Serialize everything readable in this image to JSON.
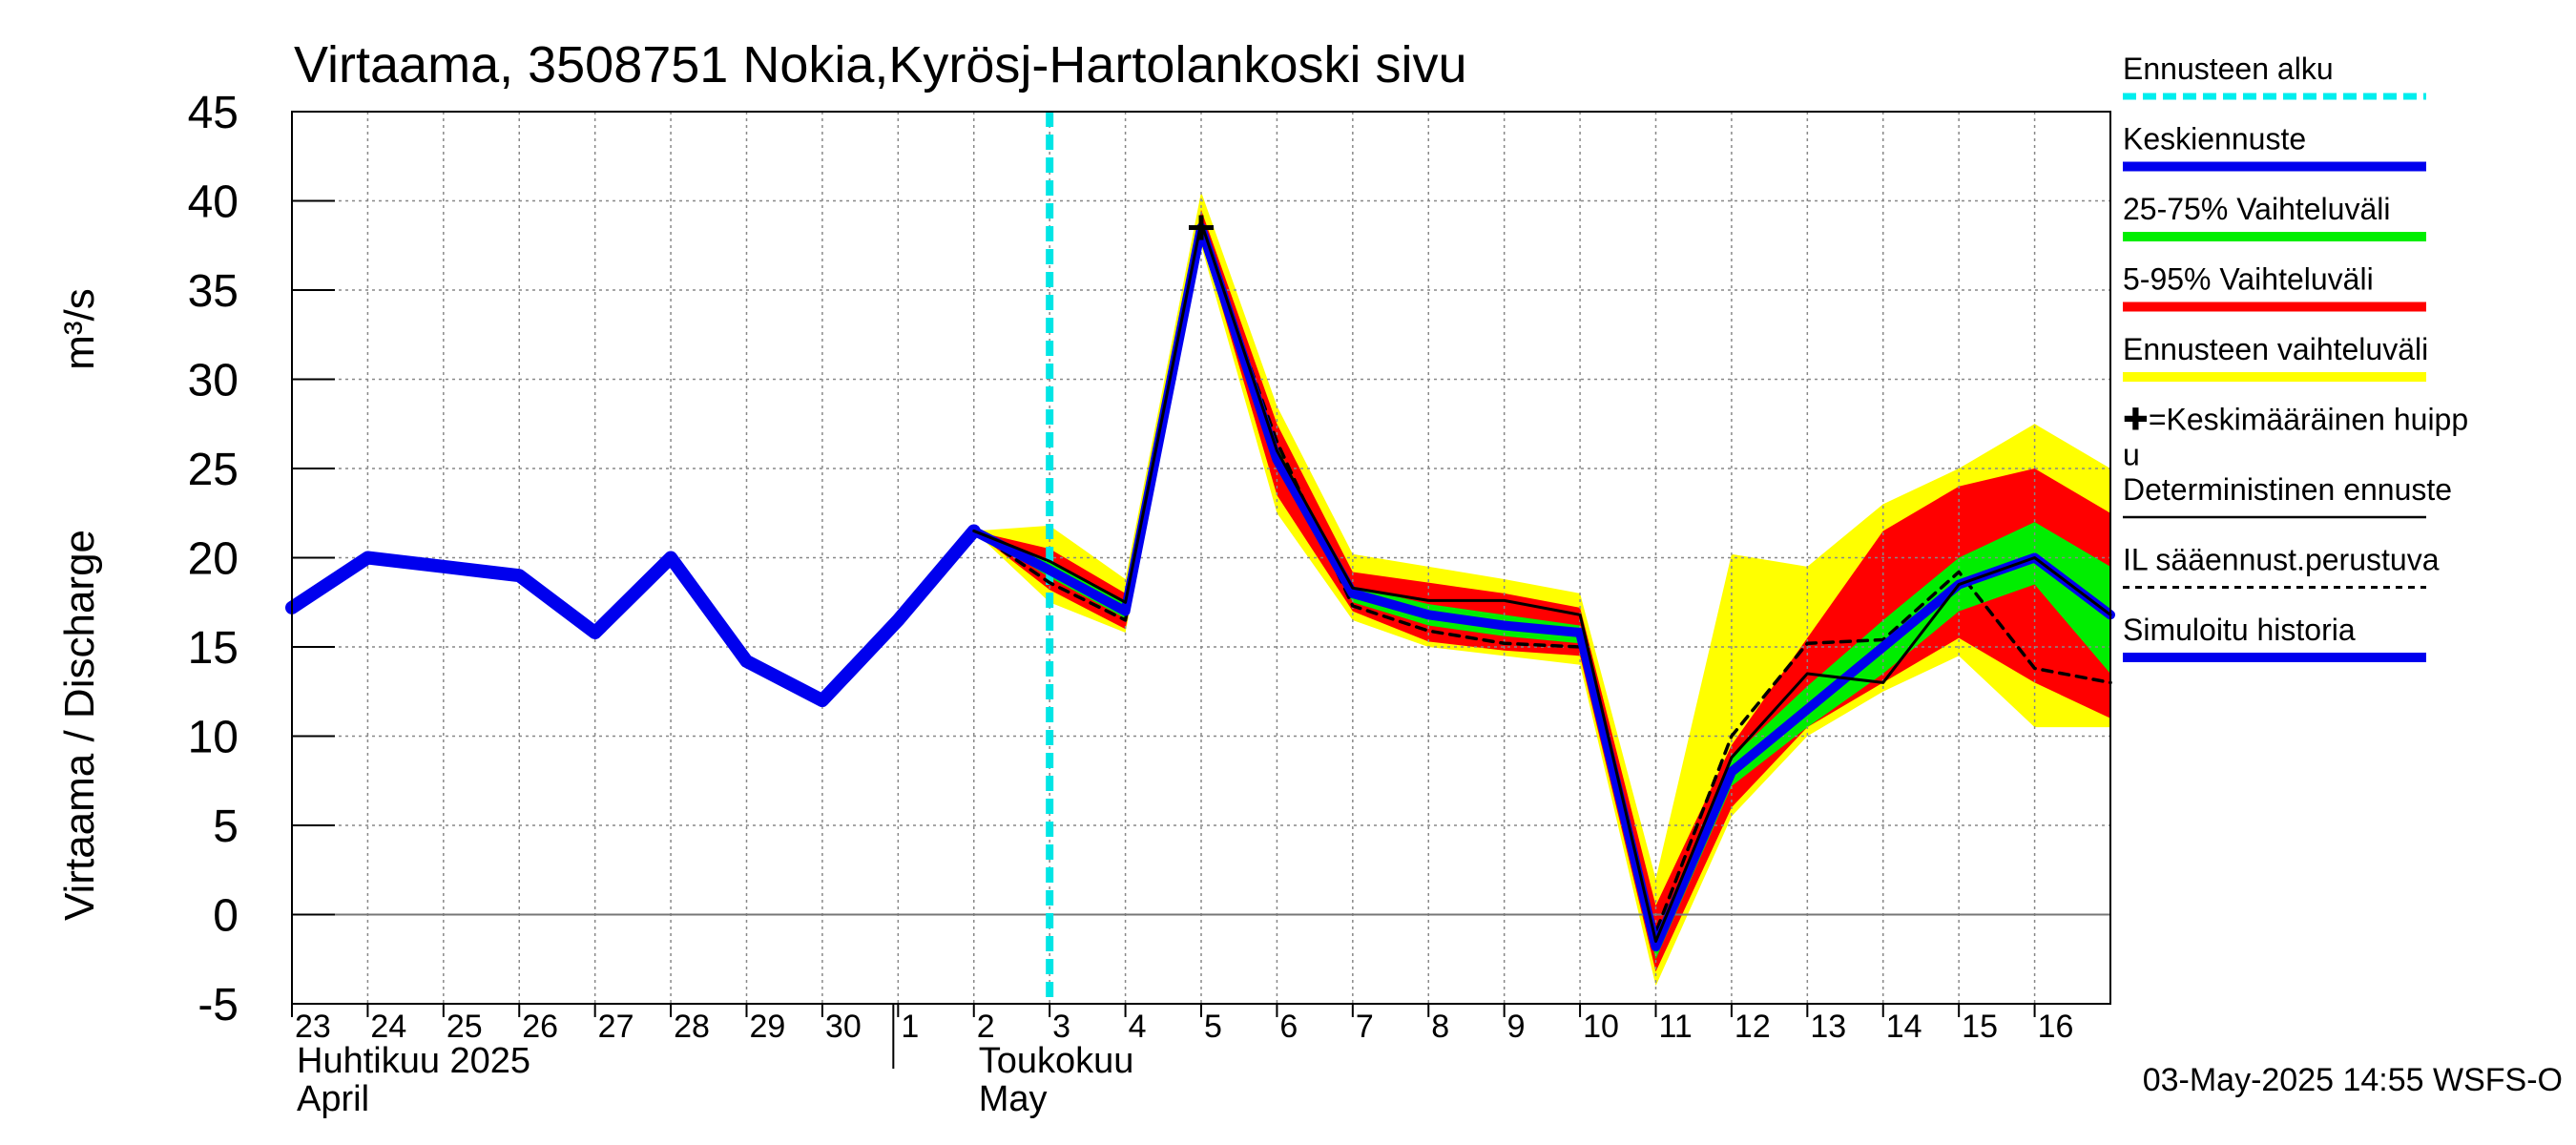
{
  "chart_data": {
    "type": "line",
    "title": "Virtaama, 3508751 Nokia,Kyrösj-Hartolankoski sivu",
    "ylabel": "Virtaama / Discharge",
    "yunit": "m³/s",
    "ylim": [
      -5,
      45
    ],
    "yticks": [
      -5,
      0,
      5,
      10,
      15,
      20,
      25,
      30,
      35,
      40,
      45
    ],
    "x_day_range": [
      0,
      24
    ],
    "x_ticks": [
      {
        "pos": 0,
        "label": "23"
      },
      {
        "pos": 1,
        "label": "24"
      },
      {
        "pos": 2,
        "label": "25"
      },
      {
        "pos": 3,
        "label": "26"
      },
      {
        "pos": 4,
        "label": "27"
      },
      {
        "pos": 5,
        "label": "28"
      },
      {
        "pos": 6,
        "label": "29"
      },
      {
        "pos": 7,
        "label": "30"
      },
      {
        "pos": 8,
        "label": "1"
      },
      {
        "pos": 9,
        "label": "2"
      },
      {
        "pos": 10,
        "label": "3"
      },
      {
        "pos": 11,
        "label": "4"
      },
      {
        "pos": 12,
        "label": "5"
      },
      {
        "pos": 13,
        "label": "6"
      },
      {
        "pos": 14,
        "label": "7"
      },
      {
        "pos": 15,
        "label": "8"
      },
      {
        "pos": 16,
        "label": "9"
      },
      {
        "pos": 17,
        "label": "10"
      },
      {
        "pos": 18,
        "label": "11"
      },
      {
        "pos": 19,
        "label": "12"
      },
      {
        "pos": 20,
        "label": "13"
      },
      {
        "pos": 21,
        "label": "14"
      },
      {
        "pos": 22,
        "label": "15"
      },
      {
        "pos": 23,
        "label": "16"
      }
    ],
    "month_labels": [
      {
        "pos": 0,
        "line1": "Huhtikuu  2025",
        "line2": "April"
      },
      {
        "pos": 9,
        "line1": "Toukokuu",
        "line2": "May"
      }
    ],
    "month_divider_pos": 8,
    "forecast_start_pos": 10,
    "series": [
      {
        "name": "Simuloitu historia",
        "color": "#0000ee",
        "x": [
          0,
          1,
          2,
          3,
          4,
          5,
          6,
          7,
          8,
          9
        ],
        "y": [
          17.2,
          20.0,
          19.5,
          19.0,
          15.8,
          20.0,
          14.2,
          12.0,
          16.5,
          21.5
        ]
      },
      {
        "name": "Keskiennuste",
        "color": "#0000ee",
        "x": [
          9,
          10,
          11,
          12,
          13,
          14,
          15,
          16,
          17,
          18,
          19,
          20,
          21,
          22,
          23,
          24
        ],
        "y": [
          21.5,
          19.3,
          17.0,
          38.5,
          25.5,
          18.0,
          16.8,
          16.2,
          15.8,
          -1.8,
          8.0,
          11.5,
          15.0,
          18.5,
          20.0,
          16.8
        ]
      },
      {
        "name": "Deterministinen ennuste",
        "color": "#000000",
        "x": [
          9,
          10,
          11,
          12,
          13,
          14,
          15,
          16,
          17,
          18,
          19,
          20,
          21,
          22,
          23,
          24
        ],
        "y": [
          21.5,
          19.8,
          17.5,
          38.8,
          26.0,
          18.3,
          17.6,
          17.6,
          16.8,
          -1.5,
          8.8,
          13.5,
          13.0,
          18.5,
          20.0,
          16.8
        ]
      },
      {
        "name": "IL sääennust.perustuva",
        "color": "#000000",
        "x": [
          9,
          10,
          11,
          12,
          13,
          14,
          15,
          16,
          17,
          18,
          19,
          20,
          21,
          22,
          23,
          24
        ],
        "y": [
          21.5,
          18.6,
          16.5,
          38.4,
          26.5,
          17.3,
          15.9,
          15.2,
          15.0,
          -1.0,
          10.0,
          15.2,
          15.4,
          19.2,
          13.8,
          13.0
        ]
      }
    ],
    "bands": [
      {
        "name": "Ennusteen vaihteluväli",
        "color": "#ffff00",
        "x": [
          9,
          10,
          11,
          12,
          13,
          14,
          15,
          16,
          17,
          18,
          19,
          20,
          21,
          22,
          23,
          24
        ],
        "upper": [
          21.5,
          21.8,
          18.8,
          40.5,
          28.5,
          20.2,
          19.5,
          18.8,
          18.0,
          2.0,
          20.2,
          19.5,
          23.0,
          25.0,
          27.5,
          25.0
        ],
        "lower": [
          21.5,
          17.5,
          15.8,
          37.5,
          22.5,
          16.5,
          15.0,
          14.5,
          14.0,
          -4.0,
          5.5,
          10.0,
          12.5,
          14.5,
          10.5,
          10.5
        ]
      },
      {
        "name": "5-95% Vaihteluväli",
        "color": "#ff0000",
        "x": [
          9,
          10,
          11,
          12,
          13,
          14,
          15,
          16,
          17,
          18,
          19,
          20,
          21,
          22,
          23,
          24
        ],
        "upper": [
          21.5,
          20.5,
          18.0,
          39.5,
          27.5,
          19.2,
          18.6,
          18.0,
          17.2,
          0.5,
          9.5,
          15.5,
          21.5,
          24.0,
          25.0,
          22.5
        ],
        "lower": [
          21.5,
          18.2,
          16.0,
          38.0,
          23.5,
          17.0,
          15.3,
          14.8,
          14.5,
          -3.2,
          6.0,
          10.5,
          13.0,
          15.5,
          13.0,
          11.0
        ]
      },
      {
        "name": "25-75% Vaihteluväli",
        "color": "#00ee00",
        "x": [
          9,
          10,
          11,
          12,
          13,
          14,
          15,
          16,
          17,
          18,
          19,
          20,
          21,
          22,
          23,
          24
        ],
        "upper": [
          21.5,
          19.8,
          17.5,
          38.8,
          26.2,
          18.4,
          17.4,
          16.8,
          16.2,
          -1.2,
          8.8,
          12.8,
          16.5,
          20.0,
          22.0,
          19.5
        ],
        "lower": [
          21.5,
          18.9,
          16.6,
          38.3,
          25.0,
          17.5,
          16.2,
          15.6,
          15.2,
          -2.5,
          7.2,
          10.5,
          13.5,
          17.0,
          18.5,
          13.5
        ]
      }
    ],
    "peak_marker": {
      "x": 12,
      "y": 38.5
    },
    "legend": [
      {
        "label": "Ennusteen alku",
        "style": "dashed",
        "color": "#00eeee"
      },
      {
        "label": "Keskiennuste",
        "style": "thick",
        "color": "#0000ee"
      },
      {
        "label": "25-75% Vaihteluväli",
        "style": "thick",
        "color": "#00ee00"
      },
      {
        "label": "5-95% Vaihteluväli",
        "style": "thick",
        "color": "#ff0000"
      },
      {
        "label": "Ennusteen vaihteluväli",
        "style": "thick",
        "color": "#ffff00"
      },
      {
        "label": "✚=Keskimääräinen huipp",
        "label2": "u",
        "style": "none",
        "color": "#000000"
      },
      {
        "label": "Deterministinen ennuste",
        "style": "thin",
        "color": "#000000"
      },
      {
        "label": "IL sääennust.perustuva",
        "style": "dotted",
        "color": "#000000"
      },
      {
        "label": "Simuloitu historia",
        "style": "thick",
        "color": "#0000ee"
      }
    ],
    "legend_position": "right",
    "timestamp": "03-May-2025 14:55 WSFS-O"
  }
}
